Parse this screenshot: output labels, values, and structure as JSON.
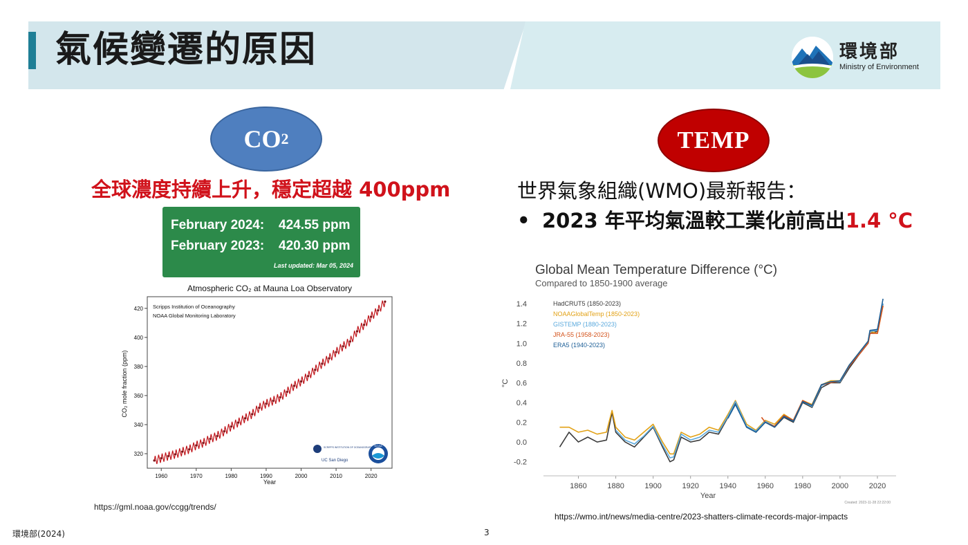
{
  "header": {
    "title": "氣候變遷的原因",
    "logo_cn": "環境部",
    "logo_en": "Ministry of Environment"
  },
  "co2": {
    "badge_main": "CO",
    "badge_sub": "2",
    "headline": "全球濃度持續上升，穩定超越 400ppm",
    "stats": [
      {
        "label": "February 2024:",
        "value": "424.55 ppm"
      },
      {
        "label": "February 2023:",
        "value": "420.30 ppm"
      }
    ],
    "last_updated": "Last updated: Mar 05, 2024",
    "source": "https://gml.noaa.gov/ccgg/trends/"
  },
  "temp": {
    "badge": "TEMP",
    "intro": "世界氣象組織(WMO)最新報告：",
    "bullet_symbol": "•",
    "bullet_text": "2023 年平均氣溫較工業化前高出",
    "bullet_value": "1.4 °C",
    "source": "https://wmo.int/news/media-centre/2023-shatters-climate-records-major-impacts"
  },
  "footer": {
    "credit": "環境部(2024)",
    "page_number": "3"
  },
  "chart_data": [
    {
      "type": "line",
      "title": "Atmospheric CO₂ at Mauna Loa Observatory",
      "xlabel": "Year",
      "ylabel": "CO₂ mole fraction (ppm)",
      "xlim": [
        1956,
        2026
      ],
      "ylim": [
        310,
        428
      ],
      "xticks": [
        1960,
        1970,
        1980,
        1990,
        2000,
        2010,
        2020
      ],
      "yticks": [
        320,
        340,
        360,
        380,
        400,
        420
      ],
      "annotations": [
        "Scripps Institution of Oceanography",
        "NOAA Global Monitoring Laboratory"
      ],
      "logos": [
        "SCRIPPS INSTITUTION OF OCEANOGRAPHY",
        "UC San Diego",
        "NOAA"
      ],
      "color": "#c0151b",
      "series": [
        {
          "x": [
            1958,
            1960,
            1962,
            1964,
            1966,
            1968,
            1970,
            1972,
            1974,
            1976,
            1978,
            1980,
            1982,
            1984,
            1986,
            1988,
            1990,
            1992,
            1994,
            1996,
            1998,
            2000,
            2002,
            2004,
            2006,
            2008,
            2010,
            2012,
            2014,
            2016,
            2018,
            2020,
            2022,
            2024
          ],
          "y": [
            315.3,
            316.9,
            318.4,
            319.6,
            321.4,
            323.0,
            325.7,
            327.4,
            330.2,
            332.2,
            335.4,
            338.7,
            341.4,
            344.4,
            347.2,
            351.6,
            354.4,
            356.4,
            358.8,
            362.6,
            366.7,
            369.7,
            373.4,
            377.7,
            381.9,
            385.6,
            389.9,
            393.9,
            397.2,
            404.2,
            408.7,
            414.2,
            418.6,
            424.6
          ]
        }
      ]
    },
    {
      "type": "line",
      "title": "Global Mean Temperature Difference (°C)",
      "subtitle": "Compared to 1850-1900 average",
      "xlabel": "Year",
      "ylabel": "°C",
      "xlim": [
        1845,
        2030
      ],
      "ylim": [
        -0.3,
        1.45
      ],
      "xticks": [
        1860,
        1880,
        1900,
        1920,
        1940,
        1960,
        1980,
        2000,
        2020
      ],
      "yticks": [
        -0.2,
        0.0,
        0.2,
        0.4,
        0.6,
        0.8,
        1.0,
        1.2,
        1.4
      ],
      "legend_position": "top-left",
      "footnote": "Created: 2023-11-28 22:22:00",
      "series": [
        {
          "name": "HadCRUT5 (1850-2023)",
          "color": "#3a3a3a",
          "x": [
            1850,
            1855,
            1860,
            1865,
            1870,
            1875,
            1878,
            1880,
            1885,
            1890,
            1895,
            1900,
            1905,
            1909,
            1911,
            1915,
            1920,
            1925,
            1930,
            1935,
            1940,
            1944,
            1950,
            1955,
            1960,
            1965,
            1970,
            1975,
            1980,
            1985,
            1990,
            1995,
            2000,
            2005,
            2010,
            2015,
            2016,
            2020,
            2023
          ],
          "y": [
            -0.05,
            0.1,
            0.0,
            0.05,
            0.0,
            0.02,
            0.3,
            0.1,
            0.0,
            -0.05,
            0.05,
            0.15,
            -0.05,
            -0.2,
            -0.18,
            0.05,
            0.0,
            0.02,
            0.1,
            0.08,
            0.25,
            0.4,
            0.15,
            0.1,
            0.2,
            0.15,
            0.25,
            0.2,
            0.4,
            0.35,
            0.55,
            0.6,
            0.6,
            0.75,
            0.88,
            1.0,
            1.1,
            1.12,
            1.4
          ]
        },
        {
          "name": "NOAAGlobalTemp (1850-2023)",
          "color": "#e2a115",
          "x": [
            1850,
            1855,
            1860,
            1865,
            1870,
            1875,
            1878,
            1880,
            1885,
            1890,
            1895,
            1900,
            1905,
            1909,
            1911,
            1915,
            1920,
            1925,
            1930,
            1935,
            1940,
            1944,
            1950,
            1955,
            1960,
            1965,
            1970,
            1975,
            1980,
            1985,
            1990,
            1995,
            2000,
            2005,
            2010,
            2015,
            2016,
            2020,
            2023
          ],
          "y": [
            0.15,
            0.15,
            0.1,
            0.12,
            0.08,
            0.1,
            0.32,
            0.15,
            0.05,
            0.02,
            0.1,
            0.18,
            0.0,
            -0.12,
            -0.12,
            0.1,
            0.05,
            0.08,
            0.15,
            0.12,
            0.28,
            0.42,
            0.18,
            0.12,
            0.22,
            0.18,
            0.28,
            0.22,
            0.42,
            0.38,
            0.58,
            0.62,
            0.62,
            0.78,
            0.9,
            1.02,
            1.12,
            1.1,
            1.38
          ]
        },
        {
          "name": "GISTEMP (1880-2023)",
          "color": "#5aa9dd",
          "x": [
            1880,
            1885,
            1890,
            1895,
            1900,
            1905,
            1909,
            1911,
            1915,
            1920,
            1925,
            1930,
            1935,
            1940,
            1944,
            1950,
            1955,
            1960,
            1965,
            1970,
            1975,
            1980,
            1985,
            1990,
            1995,
            2000,
            2005,
            2010,
            2015,
            2016,
            2020,
            2023
          ],
          "y": [
            0.12,
            0.02,
            -0.02,
            0.06,
            0.16,
            -0.03,
            -0.16,
            -0.15,
            0.08,
            0.02,
            0.05,
            0.12,
            0.1,
            0.26,
            0.41,
            0.16,
            0.11,
            0.21,
            0.16,
            0.26,
            0.21,
            0.41,
            0.36,
            0.57,
            0.61,
            0.61,
            0.77,
            0.89,
            1.01,
            1.12,
            1.13,
            1.4
          ]
        },
        {
          "name": "JRA-55 (1958-2023)",
          "color": "#d4531c",
          "x": [
            1958,
            1960,
            1965,
            1970,
            1975,
            1980,
            1985,
            1990,
            1995,
            2000,
            2005,
            2010,
            2015,
            2016,
            2020,
            2023
          ],
          "y": [
            0.25,
            0.2,
            0.16,
            0.27,
            0.22,
            0.42,
            0.37,
            0.58,
            0.6,
            0.62,
            0.77,
            0.88,
            1.0,
            1.1,
            1.1,
            1.38
          ]
        },
        {
          "name": "ERA5 (1940-2023)",
          "color": "#1c5e96",
          "x": [
            1940,
            1944,
            1950,
            1955,
            1960,
            1965,
            1970,
            1975,
            1980,
            1985,
            1990,
            1995,
            2000,
            2005,
            2010,
            2015,
            2016,
            2020,
            2023
          ],
          "y": [
            0.24,
            0.38,
            0.15,
            0.1,
            0.2,
            0.15,
            0.26,
            0.21,
            0.41,
            0.37,
            0.58,
            0.61,
            0.62,
            0.78,
            0.9,
            1.02,
            1.13,
            1.14,
            1.45
          ]
        }
      ]
    }
  ]
}
